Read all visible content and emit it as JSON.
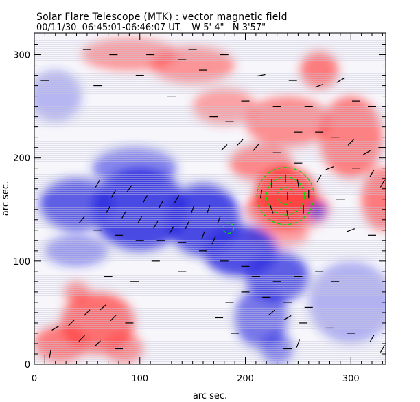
{
  "chart_data": {
    "type": "heatmap",
    "title": "Solar Flare Telescope (MTK) : vector magnetic field",
    "subtitle": {
      "date": "00/11/30",
      "time_range": "06:45:01-06:46:07 UT",
      "longitude": "W 5' 4\"",
      "latitude": "N 3'57\""
    },
    "xlabel": "arc sec.",
    "ylabel": "arc sec.",
    "xlim": [
      0,
      333
    ],
    "ylim": [
      0,
      321
    ],
    "xticks": [
      0,
      100,
      200,
      300
    ],
    "yticks": [
      0,
      100,
      200,
      300
    ],
    "colors": {
      "positive": "#ff4040",
      "negative": "#3030e0",
      "contour": "#00dd00",
      "arrows": "#000000"
    },
    "polarity_regions": [
      {
        "x": 90,
        "y": 300,
        "rx": 45,
        "ry": 16,
        "sign": 1,
        "strength": 0.35
      },
      {
        "x": 150,
        "y": 290,
        "rx": 40,
        "ry": 18,
        "sign": 1,
        "strength": 0.4
      },
      {
        "x": 270,
        "y": 285,
        "rx": 18,
        "ry": 18,
        "sign": 1,
        "strength": 0.6
      },
      {
        "x": 180,
        "y": 250,
        "rx": 30,
        "ry": 18,
        "sign": 1,
        "strength": 0.3
      },
      {
        "x": 240,
        "y": 235,
        "rx": 40,
        "ry": 25,
        "sign": 1,
        "strength": 0.45
      },
      {
        "x": 300,
        "y": 220,
        "rx": 30,
        "ry": 40,
        "sign": 1,
        "strength": 0.55
      },
      {
        "x": 330,
        "y": 160,
        "rx": 20,
        "ry": 30,
        "sign": 1,
        "strength": 0.6
      },
      {
        "x": 215,
        "y": 195,
        "rx": 30,
        "ry": 18,
        "sign": 1,
        "strength": 0.5
      },
      {
        "x": 238,
        "y": 163,
        "rx": 30,
        "ry": 28,
        "sign": 1,
        "strength": 1.0
      },
      {
        "x": 240,
        "y": 150,
        "rx": 40,
        "ry": 20,
        "sign": 1,
        "strength": 0.55
      },
      {
        "x": 230,
        "y": 125,
        "rx": 30,
        "ry": 12,
        "sign": 1,
        "strength": 0.3
      },
      {
        "x": 60,
        "y": 40,
        "rx": 35,
        "ry": 30,
        "sign": 1,
        "strength": 0.7
      },
      {
        "x": 25,
        "y": 20,
        "rx": 25,
        "ry": 18,
        "sign": 1,
        "strength": 0.6
      },
      {
        "x": 40,
        "y": 70,
        "rx": 12,
        "ry": 10,
        "sign": 1,
        "strength": 0.5
      },
      {
        "x": 85,
        "y": 15,
        "rx": 18,
        "ry": 14,
        "sign": 1,
        "strength": 0.5
      },
      {
        "x": 40,
        "y": 155,
        "rx": 35,
        "ry": 25,
        "sign": -1,
        "strength": 0.75
      },
      {
        "x": 100,
        "y": 150,
        "rx": 45,
        "ry": 40,
        "sign": -1,
        "strength": 0.9
      },
      {
        "x": 95,
        "y": 190,
        "rx": 40,
        "ry": 20,
        "sign": -1,
        "strength": 0.45
      },
      {
        "x": 160,
        "y": 140,
        "rx": 35,
        "ry": 35,
        "sign": -1,
        "strength": 0.9
      },
      {
        "x": 195,
        "y": 110,
        "rx": 35,
        "ry": 25,
        "sign": -1,
        "strength": 0.85
      },
      {
        "x": 230,
        "y": 85,
        "rx": 30,
        "ry": 25,
        "sign": -1,
        "strength": 0.75
      },
      {
        "x": 215,
        "y": 45,
        "rx": 25,
        "ry": 30,
        "sign": -1,
        "strength": 0.55
      },
      {
        "x": 230,
        "y": 15,
        "rx": 15,
        "ry": 15,
        "sign": -1,
        "strength": 0.5
      },
      {
        "x": 268,
        "y": 148,
        "rx": 8,
        "ry": 8,
        "sign": -1,
        "strength": 0.8
      },
      {
        "x": 40,
        "y": 110,
        "rx": 30,
        "ry": 15,
        "sign": -1,
        "strength": 0.3
      },
      {
        "x": 300,
        "y": 60,
        "rx": 40,
        "ry": 40,
        "sign": -1,
        "strength": 0.15
      },
      {
        "x": 20,
        "y": 260,
        "rx": 25,
        "ry": 25,
        "sign": -1,
        "strength": 0.12
      }
    ],
    "contours": [
      {
        "x": 238,
        "y": 163,
        "r": 8
      },
      {
        "x": 238,
        "y": 163,
        "r": 18
      },
      {
        "x": 238,
        "y": 163,
        "r": 27
      },
      {
        "x": 184,
        "y": 132,
        "r": 5
      }
    ],
    "vectors": [
      [
        50,
        305,
        0
      ],
      [
        75,
        300,
        0
      ],
      [
        110,
        300,
        0
      ],
      [
        140,
        295,
        0
      ],
      [
        150,
        305,
        0
      ],
      [
        180,
        300,
        0
      ],
      [
        215,
        280,
        10
      ],
      [
        245,
        275,
        0
      ],
      [
        270,
        270,
        20
      ],
      [
        290,
        275,
        30
      ],
      [
        10,
        275,
        0
      ],
      [
        60,
        270,
        0
      ],
      [
        100,
        280,
        0
      ],
      [
        160,
        285,
        0
      ],
      [
        200,
        255,
        0
      ],
      [
        230,
        250,
        0
      ],
      [
        260,
        250,
        0
      ],
      [
        305,
        255,
        0
      ],
      [
        320,
        250,
        0
      ],
      [
        130,
        260,
        0
      ],
      [
        170,
        240,
        0
      ],
      [
        185,
        235,
        0
      ],
      [
        250,
        225,
        0
      ],
      [
        270,
        225,
        0
      ],
      [
        285,
        220,
        0
      ],
      [
        300,
        215,
        45
      ],
      [
        315,
        205,
        30
      ],
      [
        330,
        210,
        0
      ],
      [
        180,
        210,
        45
      ],
      [
        195,
        215,
        45
      ],
      [
        210,
        210,
        50
      ],
      [
        230,
        205,
        0
      ],
      [
        250,
        195,
        0
      ],
      [
        280,
        190,
        20
      ],
      [
        305,
        190,
        0
      ],
      [
        320,
        185,
        60
      ],
      [
        330,
        175,
        60
      ],
      [
        60,
        175,
        60
      ],
      [
        75,
        165,
        60
      ],
      [
        90,
        170,
        55
      ],
      [
        105,
        160,
        60
      ],
      [
        120,
        155,
        60
      ],
      [
        135,
        160,
        60
      ],
      [
        150,
        150,
        70
      ],
      [
        165,
        150,
        70
      ],
      [
        175,
        140,
        70
      ],
      [
        70,
        150,
        60
      ],
      [
        85,
        145,
        60
      ],
      [
        100,
        140,
        60
      ],
      [
        115,
        135,
        60
      ],
      [
        130,
        130,
        60
      ],
      [
        145,
        135,
        65
      ],
      [
        160,
        125,
        70
      ],
      [
        170,
        120,
        65
      ],
      [
        45,
        140,
        50
      ],
      [
        60,
        130,
        0
      ],
      [
        80,
        125,
        0
      ],
      [
        100,
        120,
        0
      ],
      [
        120,
        120,
        0
      ],
      [
        140,
        118,
        0
      ],
      [
        160,
        110,
        0
      ],
      [
        180,
        100,
        0
      ],
      [
        200,
        95,
        0
      ],
      [
        210,
        85,
        0
      ],
      [
        230,
        80,
        0
      ],
      [
        250,
        85,
        0
      ],
      [
        270,
        90,
        0
      ],
      [
        285,
        80,
        0
      ],
      [
        200,
        70,
        0
      ],
      [
        220,
        65,
        0
      ],
      [
        240,
        60,
        0
      ],
      [
        260,
        55,
        0
      ],
      [
        225,
        50,
        40
      ],
      [
        240,
        45,
        30
      ],
      [
        255,
        40,
        0
      ],
      [
        280,
        35,
        0
      ],
      [
        300,
        30,
        0
      ],
      [
        320,
        25,
        60
      ],
      [
        330,
        15,
        60
      ],
      [
        240,
        15,
        0
      ],
      [
        250,
        20,
        70
      ],
      [
        215,
        165,
        80
      ],
      [
        225,
        175,
        90
      ],
      [
        238,
        180,
        90
      ],
      [
        250,
        175,
        100
      ],
      [
        260,
        165,
        90
      ],
      [
        225,
        150,
        110
      ],
      [
        240,
        145,
        100
      ],
      [
        255,
        150,
        90
      ],
      [
        240,
        163,
        90
      ],
      [
        270,
        180,
        60
      ],
      [
        290,
        160,
        0
      ],
      [
        300,
        130,
        20
      ],
      [
        320,
        125,
        0
      ],
      [
        335,
        140,
        60
      ],
      [
        20,
        35,
        30
      ],
      [
        35,
        40,
        45
      ],
      [
        50,
        50,
        45
      ],
      [
        65,
        55,
        40
      ],
      [
        75,
        45,
        45
      ],
      [
        90,
        40,
        0
      ],
      [
        45,
        25,
        45
      ],
      [
        60,
        20,
        45
      ],
      [
        80,
        15,
        0
      ],
      [
        10,
        5,
        90
      ],
      [
        15,
        10,
        80
      ],
      [
        140,
        90,
        0
      ],
      [
        115,
        100,
        0
      ],
      [
        95,
        80,
        0
      ],
      [
        70,
        85,
        0
      ],
      [
        175,
        45,
        0
      ],
      [
        185,
        60,
        0
      ],
      [
        190,
        30,
        0
      ]
    ]
  }
}
